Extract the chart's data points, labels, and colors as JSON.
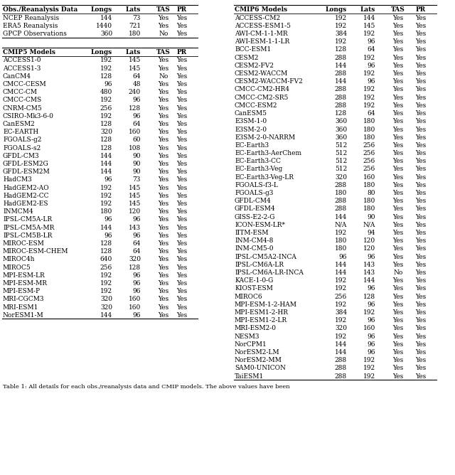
{
  "obs_header": [
    "Obs./Reanalysis Data",
    "Longs",
    "Lats",
    "TAS",
    "PR"
  ],
  "obs_data": [
    [
      "NCEP Reanalysis",
      "144",
      "73",
      "Yes",
      "Yes"
    ],
    [
      "ERA5 Reanalysis",
      "1440",
      "721",
      "Yes",
      "Yes"
    ],
    [
      "GPCP Observations",
      "360",
      "180",
      "No",
      "Yes"
    ]
  ],
  "cmip5_header": [
    "CMIP5 Models",
    "Longs",
    "Lats",
    "TAS",
    "PR"
  ],
  "cmip5_data": [
    [
      "ACCESS1-0",
      "192",
      "145",
      "Yes",
      "Yes"
    ],
    [
      "ACCESS1-3",
      "192",
      "145",
      "Yes",
      "Yes"
    ],
    [
      "CanCM4",
      "128",
      "64",
      "No",
      "Yes"
    ],
    [
      "CMCC-CESM",
      "96",
      "48",
      "Yes",
      "Yes"
    ],
    [
      "CMCC-CM",
      "480",
      "240",
      "Yes",
      "Yes"
    ],
    [
      "CMCC-CMS",
      "192",
      "96",
      "Yes",
      "Yes"
    ],
    [
      "CNRM-CM5",
      "256",
      "128",
      "Yes",
      "Yes"
    ],
    [
      "CSIRO-Mk3-6-0",
      "192",
      "96",
      "Yes",
      "Yes"
    ],
    [
      "CanESM2",
      "128",
      "64",
      "Yes",
      "Yes"
    ],
    [
      "EC-EARTH",
      "320",
      "160",
      "Yes",
      "Yes"
    ],
    [
      "FGOALS-g2",
      "128",
      "60",
      "Yes",
      "Yes"
    ],
    [
      "FGOALS-s2",
      "128",
      "108",
      "Yes",
      "Yes"
    ],
    [
      "GFDL-CM3",
      "144",
      "90",
      "Yes",
      "Yes"
    ],
    [
      "GFDL-ESM2G",
      "144",
      "90",
      "Yes",
      "Yes"
    ],
    [
      "GFDL-ESM2M",
      "144",
      "90",
      "Yes",
      "Yes"
    ],
    [
      "HadCM3",
      "96",
      "73",
      "Yes",
      "Yes"
    ],
    [
      "HadGEM2-AO",
      "192",
      "145",
      "Yes",
      "Yes"
    ],
    [
      "HadGEM2-CC",
      "192",
      "145",
      "Yes",
      "Yes"
    ],
    [
      "HadGEM2-ES",
      "192",
      "145",
      "Yes",
      "Yes"
    ],
    [
      "INMCM4",
      "180",
      "120",
      "Yes",
      "Yes"
    ],
    [
      "IPSL-CM5A-LR",
      "96",
      "96",
      "Yes",
      "Yes"
    ],
    [
      "IPSL-CM5A-MR",
      "144",
      "143",
      "Yes",
      "Yes"
    ],
    [
      "IPSL-CM5B-LR",
      "96",
      "96",
      "Yes",
      "Yes"
    ],
    [
      "MIROC-ESM",
      "128",
      "64",
      "Yes",
      "Yes"
    ],
    [
      "MIROC-ESM-CHEM",
      "128",
      "64",
      "Yes",
      "Yes"
    ],
    [
      "MIROC4h",
      "640",
      "320",
      "Yes",
      "Yes"
    ],
    [
      "MIROC5",
      "256",
      "128",
      "Yes",
      "Yes"
    ],
    [
      "MPI-ESM-LR",
      "192",
      "96",
      "Yes",
      "Yes"
    ],
    [
      "MPI-ESM-MR",
      "192",
      "96",
      "Yes",
      "Yes"
    ],
    [
      "MPI-ESM-P",
      "192",
      "96",
      "Yes",
      "Yes"
    ],
    [
      "MRI-CGCM3",
      "320",
      "160",
      "Yes",
      "Yes"
    ],
    [
      "MRI-ESM1",
      "320",
      "160",
      "Yes",
      "Yes"
    ],
    [
      "NorESM1-M",
      "144",
      "96",
      "Yes",
      "Yes"
    ]
  ],
  "cmip6_header": [
    "CMIP6 Models",
    "Longs",
    "Lats",
    "TAS",
    "PR"
  ],
  "cmip6_data": [
    [
      "ACCESS-CM2",
      "192",
      "144",
      "Yes",
      "Yes"
    ],
    [
      "ACCESS-ESM1-5",
      "192",
      "145",
      "Yes",
      "Yes"
    ],
    [
      "AWI-CM-1-1-MR",
      "384",
      "192",
      "Yes",
      "Yes"
    ],
    [
      "AWI-ESM-1-1-LR",
      "192",
      "96",
      "Yes",
      "Yes"
    ],
    [
      "BCC-ESM1",
      "128",
      "64",
      "Yes",
      "Yes"
    ],
    [
      "CESM2",
      "288",
      "192",
      "Yes",
      "Yes"
    ],
    [
      "CESM2-FV2",
      "144",
      "96",
      "Yes",
      "Yes"
    ],
    [
      "CESM2-WACCM",
      "288",
      "192",
      "Yes",
      "Yes"
    ],
    [
      "CESM2-WACCM-FV2",
      "144",
      "96",
      "Yes",
      "Yes"
    ],
    [
      "CMCC-CM2-HR4",
      "288",
      "192",
      "Yes",
      "Yes"
    ],
    [
      "CMCC-CM2-SR5",
      "288",
      "192",
      "Yes",
      "Yes"
    ],
    [
      "CMCC-ESM2",
      "288",
      "192",
      "Yes",
      "Yes"
    ],
    [
      "CanESM5",
      "128",
      "64",
      "Yes",
      "Yes"
    ],
    [
      "E3SM-1-0",
      "360",
      "180",
      "Yes",
      "Yes"
    ],
    [
      "E3SM-2-0",
      "360",
      "180",
      "Yes",
      "Yes"
    ],
    [
      "E3SM-2-0-NARRM",
      "360",
      "180",
      "Yes",
      "Yes"
    ],
    [
      "EC-Earth3",
      "512",
      "256",
      "Yes",
      "Yes"
    ],
    [
      "EC-Earth3-AerChem",
      "512",
      "256",
      "Yes",
      "Yes"
    ],
    [
      "EC-Earth3-CC",
      "512",
      "256",
      "Yes",
      "Yes"
    ],
    [
      "EC-Earth3-Veg",
      "512",
      "256",
      "Yes",
      "Yes"
    ],
    [
      "EC-Earth3-Veg-LR",
      "320",
      "160",
      "Yes",
      "Yes"
    ],
    [
      "FGOALS-f3-L",
      "288",
      "180",
      "Yes",
      "Yes"
    ],
    [
      "FGOALS-g3",
      "180",
      "80",
      "Yes",
      "Yes"
    ],
    [
      "GFDL-CM4",
      "288",
      "180",
      "Yes",
      "Yes"
    ],
    [
      "GFDL-ESM4",
      "288",
      "180",
      "Yes",
      "Yes"
    ],
    [
      "GISS-E2-2-G",
      "144",
      "90",
      "Yes",
      "Yes"
    ],
    [
      "ICON-ESM-LR*",
      "N/A",
      "N/A",
      "Yes",
      "Yes"
    ],
    [
      "IITM-ESM",
      "192",
      "94",
      "Yes",
      "Yes"
    ],
    [
      "INM-CM4-8",
      "180",
      "120",
      "Yes",
      "Yes"
    ],
    [
      "INM-CM5-0",
      "180",
      "120",
      "Yes",
      "Yes"
    ],
    [
      "IPSL-CM5A2-INCA",
      "96",
      "96",
      "Yes",
      "Yes"
    ],
    [
      "IPSL-CM6A-LR",
      "144",
      "143",
      "Yes",
      "Yes"
    ],
    [
      "IPSL-CM6A-LR-INCA",
      "144",
      "143",
      "No",
      "Yes"
    ],
    [
      "KACE-1-0-G",
      "192",
      "144",
      "Yes",
      "Yes"
    ],
    [
      "KIOST-ESM",
      "192",
      "96",
      "Yes",
      "Yes"
    ],
    [
      "MIROC6",
      "256",
      "128",
      "Yes",
      "Yes"
    ],
    [
      "MPI-ESM-1-2-HAM",
      "192",
      "96",
      "Yes",
      "Yes"
    ],
    [
      "MPI-ESM1-2-HR",
      "384",
      "192",
      "Yes",
      "Yes"
    ],
    [
      "MPI-ESM1-2-LR",
      "192",
      "96",
      "Yes",
      "Yes"
    ],
    [
      "MRI-ESM2-0",
      "320",
      "160",
      "Yes",
      "Yes"
    ],
    [
      "NESM3",
      "192",
      "96",
      "Yes",
      "Yes"
    ],
    [
      "NorCPM1",
      "144",
      "96",
      "Yes",
      "Yes"
    ],
    [
      "NorESM2-LM",
      "144",
      "96",
      "Yes",
      "Yes"
    ],
    [
      "NorESM2-MM",
      "288",
      "192",
      "Yes",
      "Yes"
    ],
    [
      "SAM0-UNICON",
      "288",
      "192",
      "Yes",
      "Yes"
    ],
    [
      "TaiESM1",
      "288",
      "192",
      "Yes",
      "Yes"
    ]
  ],
  "caption": "Table 1: All details for each obs./reanalysis data and CMIP models. The above values have been",
  "font_size": 6.5,
  "fig_width": 6.4,
  "fig_height": 6.68,
  "dpi": 100
}
